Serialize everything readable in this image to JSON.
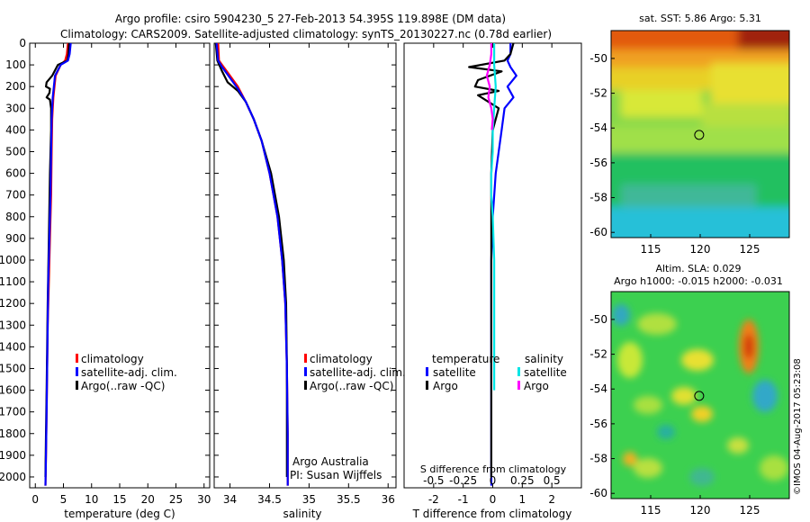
{
  "header": {
    "line1": "Argo profile: csiro 5904230_5 27-Feb-2013 54.395S 119.898E (DM data)",
    "line2": "Climatology: CARS2009. Satellite-adjusted climatology: synTS_20130227.nc (0.78d earlier)"
  },
  "colors": {
    "climatology": "#ff0000",
    "satellite": "#0000ff",
    "argo": "#000000",
    "salinity_satellite": "#00e5e5",
    "salinity_argo": "#ff00ff"
  },
  "chart_data": [
    {
      "id": "temperature",
      "type": "line",
      "xlabel": "temperature (deg C)",
      "ylabel": "",
      "xlim": [
        -1,
        31
      ],
      "ylim": [
        2050,
        0
      ],
      "xticks": [
        0,
        5,
        10,
        15,
        20,
        25,
        30
      ],
      "yticks": [
        0,
        100,
        200,
        300,
        400,
        500,
        600,
        700,
        800,
        900,
        1000,
        1100,
        1200,
        1300,
        1400,
        1500,
        1600,
        1700,
        1800,
        1900,
        2000
      ],
      "legend": [
        "climatology",
        "satellite-adj. clim.",
        "Argo(..raw -QC)"
      ],
      "legend_position": "lower-right",
      "series": [
        {
          "name": "climatology",
          "color": "#ff0000",
          "x": [
            5.8,
            5.6,
            5.3,
            4.5,
            3.6,
            3.2,
            3.0,
            2.9,
            2.8,
            2.6,
            2.4,
            2.2,
            2.1,
            2.0,
            1.9,
            1.8
          ],
          "y": [
            0,
            50,
            80,
            100,
            150,
            250,
            350,
            500,
            700,
            900,
            1100,
            1300,
            1500,
            1700,
            1900,
            2040
          ]
        },
        {
          "name": "Argo(..raw -QC)",
          "color": "#000000",
          "x": [
            6.0,
            5.9,
            5.7,
            4.0,
            3.0,
            2.0,
            1.9,
            2.6,
            2.5,
            2.0,
            2.6,
            2.8,
            2.8,
            2.6,
            2.4,
            2.2,
            2.1,
            2.0,
            1.9,
            1.8
          ],
          "y": [
            0,
            50,
            80,
            100,
            150,
            180,
            200,
            210,
            230,
            250,
            260,
            300,
            400,
            600,
            900,
            1200,
            1400,
            1600,
            1800,
            2000
          ]
        },
        {
          "name": "satellite-adj. clim.",
          "color": "#0000ff",
          "x": [
            6.3,
            6.1,
            5.8,
            4.5,
            3.5,
            3.1,
            2.9,
            2.8,
            2.7,
            2.5,
            2.3,
            2.2,
            2.1,
            2.0,
            1.9,
            1.8
          ],
          "y": [
            0,
            50,
            80,
            100,
            150,
            250,
            350,
            500,
            700,
            900,
            1100,
            1300,
            1500,
            1700,
            1900,
            2040
          ]
        }
      ]
    },
    {
      "id": "salinity",
      "type": "line",
      "xlabel": "salinity",
      "ylabel": "",
      "xlim": [
        33.8,
        36.1
      ],
      "ylim": [
        2050,
        0
      ],
      "xticks": [
        34,
        34.5,
        35,
        35.5,
        36
      ],
      "legend": [
        "climatology",
        "satellite-adj. clim.",
        "Argo(..raw -QC)"
      ],
      "legend_position": "lower-right",
      "annotations": [
        "Argo Australia",
        "PI: Susan Wijffels"
      ],
      "series": [
        {
          "name": "climatology",
          "color": "#ff0000",
          "x": [
            33.85,
            33.86,
            33.9,
            34.0,
            34.1,
            34.2,
            34.3,
            34.4,
            34.5,
            34.6,
            34.66,
            34.7,
            34.72,
            34.73,
            34.73
          ],
          "y": [
            0,
            80,
            100,
            150,
            200,
            270,
            350,
            450,
            600,
            800,
            1000,
            1200,
            1500,
            1800,
            2040
          ]
        },
        {
          "name": "Argo(..raw -QC)",
          "color": "#000000",
          "x": [
            33.82,
            33.84,
            33.9,
            33.97,
            34.1,
            34.2,
            34.3,
            34.4,
            34.52,
            34.62,
            34.68,
            34.71,
            34.72,
            34.72,
            34.72
          ],
          "y": [
            0,
            80,
            130,
            180,
            220,
            270,
            350,
            450,
            600,
            800,
            1000,
            1200,
            1500,
            1800,
            2000
          ]
        },
        {
          "name": "satellite-adj. clim.",
          "color": "#0000ff",
          "x": [
            33.83,
            33.85,
            33.9,
            34.0,
            34.1,
            34.2,
            34.3,
            34.4,
            34.5,
            34.6,
            34.66,
            34.7,
            34.72,
            34.73,
            34.73
          ],
          "y": [
            0,
            80,
            110,
            160,
            210,
            270,
            350,
            450,
            600,
            800,
            1000,
            1200,
            1500,
            1800,
            2040
          ]
        }
      ]
    },
    {
      "id": "difference",
      "type": "line",
      "xlabel": "T difference from climatology",
      "xlabel_top": "S difference from climatology",
      "ylabel": "",
      "xlim": [
        -3,
        3
      ],
      "ylim": [
        2050,
        0
      ],
      "xticks": [
        -2,
        -1,
        0,
        1,
        2
      ],
      "xticks_top": [
        "-0.5",
        "-0.25",
        "0",
        "0.25",
        "0.5"
      ],
      "legend_groups": [
        {
          "title": "temperature",
          "entries": [
            "satellite",
            "Argo"
          ]
        },
        {
          "title": "salinity",
          "entries": [
            "satellite",
            "Argo"
          ]
        }
      ],
      "legend_position": "lower-center",
      "series": [
        {
          "name": "temperature satellite",
          "color": "#0000ff",
          "x": [
            0.6,
            0.6,
            0.5,
            0.6,
            0.8,
            0.5,
            0.7,
            0.4,
            0.3,
            0.1,
            0.0,
            -0.05,
            -0.05,
            -0.05,
            -0.05
          ],
          "y": [
            0,
            50,
            80,
            110,
            150,
            200,
            250,
            300,
            400,
            600,
            800,
            1000,
            1400,
            1800,
            2040
          ]
        },
        {
          "name": "temperature Argo",
          "color": "#000000",
          "x": [
            0.7,
            0.6,
            0.4,
            -0.8,
            0.3,
            -0.5,
            -0.6,
            0.2,
            -0.5,
            0.2,
            0.0,
            -0.05,
            -0.05,
            -0.05,
            -0.05
          ],
          "y": [
            0,
            50,
            80,
            110,
            130,
            170,
            200,
            220,
            240,
            300,
            400,
            600,
            1000,
            1500,
            2000
          ]
        },
        {
          "name": "salinity satellite",
          "color": "#00e5e5",
          "x": [
            0.05,
            0.05,
            0.1,
            0.05,
            0.0,
            0.0,
            -0.05,
            -0.05,
            0.0,
            0.05,
            0.05,
            0.05,
            0.05
          ],
          "y": [
            0,
            100,
            200,
            300,
            400,
            500,
            600,
            700,
            800,
            1000,
            1200,
            1400,
            1600
          ]
        },
        {
          "name": "salinity Argo",
          "color": "#ff00ff",
          "x": [
            -0.05,
            -0.05,
            -0.1,
            -0.2,
            -0.1,
            -0.15,
            -0.05,
            0.0,
            -0.03
          ],
          "y": [
            0,
            50,
            100,
            150,
            200,
            250,
            300,
            350,
            400
          ]
        }
      ]
    },
    {
      "id": "sst_map",
      "type": "heatmap",
      "title": "sat. SST: 5.86 Argo: 5.31",
      "xlim": [
        111,
        129
      ],
      "ylim": [
        -60.3,
        -48.4
      ],
      "xticks": [
        115,
        120,
        125
      ],
      "yticks": [
        -50,
        -52,
        -54,
        -56,
        -58,
        -60
      ],
      "marker": {
        "lon": 119.898,
        "lat": -54.395
      }
    },
    {
      "id": "sla_map",
      "type": "heatmap",
      "title": "Altim. SLA: 0.029",
      "subtitle": "Argo h1000: -0.015 h2000: -0.031",
      "xlim": [
        111,
        129
      ],
      "ylim": [
        -60.3,
        -48.4
      ],
      "xticks": [
        115,
        120,
        125
      ],
      "yticks": [
        -50,
        -52,
        -54,
        -56,
        -58,
        -60
      ],
      "marker": {
        "lon": 119.898,
        "lat": -54.395
      }
    }
  ],
  "footer": {
    "credit": "©IMOS 04-Aug-2017 05:23:08"
  }
}
